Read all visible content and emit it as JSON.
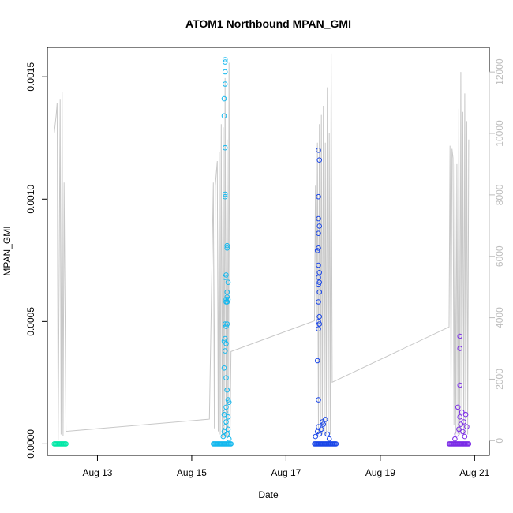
{
  "chart_data": {
    "type": "scatter",
    "title": "ATOM1 Northbound MPAN_GMI",
    "xlabel": "Date",
    "ylabel": "MPAN_GMI",
    "x_axis": {
      "type": "date",
      "range": [
        "2012-08-11T22:30",
        "2012-08-21T07:30"
      ],
      "ticks": [
        {
          "label": "Aug 13",
          "value": "2012-08-13"
        },
        {
          "label": "Aug 15",
          "value": "2012-08-15"
        },
        {
          "label": "Aug 17",
          "value": "2012-08-17"
        },
        {
          "label": "Aug 19",
          "value": "2012-08-19"
        },
        {
          "label": "Aug 21",
          "value": "2012-08-21"
        }
      ]
    },
    "y_axis": {
      "range": [
        -4.7e-05,
        0.00162
      ],
      "ticks": [
        {
          "label": "0.0000",
          "value": 0
        },
        {
          "label": "0.0005",
          "value": 0.0005
        },
        {
          "label": "0.0010",
          "value": 0.001
        },
        {
          "label": "0.0015",
          "value": 0.0015
        }
      ]
    },
    "y2_axis": {
      "color": "#bdbdbd",
      "range": [
        -480,
        12800
      ],
      "ticks": [
        {
          "label": "0",
          "value": 0
        },
        {
          "label": "2000",
          "value": 2000
        },
        {
          "label": "4000",
          "value": 4000
        },
        {
          "label": "6000",
          "value": 6000
        },
        {
          "label": "8000",
          "value": 8000
        },
        {
          "label": "10000",
          "value": 10000
        },
        {
          "label": "12000",
          "value": 12000
        }
      ]
    },
    "grid": false,
    "line_series": {
      "axis": "right",
      "color": "#c8c8c8",
      "points": [
        [
          "2012-08-12T02:00",
          10000
        ],
        [
          "2012-08-12T03:00",
          10600
        ],
        [
          "2012-08-12T03:30",
          11000
        ],
        [
          "2012-08-12T04:00",
          0
        ],
        [
          "2012-08-12T05:00",
          11100
        ],
        [
          "2012-08-12T05:30",
          200
        ],
        [
          "2012-08-12T06:00",
          11350
        ],
        [
          "2012-08-12T06:30",
          150
        ],
        [
          "2012-08-12T07:00",
          8400
        ],
        [
          "2012-08-12T08:00",
          300
        ],
        [
          "2012-08-15T09:00",
          700
        ],
        [
          "2012-08-15T11:00",
          8400
        ],
        [
          "2012-08-15T11:30",
          400
        ],
        [
          "2012-08-15T12:00",
          8300
        ],
        [
          "2012-08-15T13:00",
          9100
        ],
        [
          "2012-08-15T13:30",
          300
        ],
        [
          "2012-08-15T14:00",
          9400
        ],
        [
          "2012-08-15T14:30",
          200
        ],
        [
          "2012-08-15T15:00",
          10300
        ],
        [
          "2012-08-15T15:30",
          100
        ],
        [
          "2012-08-15T16:00",
          10200
        ],
        [
          "2012-08-15T16:30",
          100
        ],
        [
          "2012-08-15T17:00",
          11800
        ],
        [
          "2012-08-15T17:30",
          100
        ],
        [
          "2012-08-15T18:00",
          9800
        ],
        [
          "2012-08-15T18:30",
          100
        ],
        [
          "2012-08-15T19:00",
          12300
        ],
        [
          "2012-08-15T19:30",
          200
        ],
        [
          "2012-08-15T20:00",
          2900
        ],
        [
          "2012-08-17T14:30",
          3900
        ],
        [
          "2012-08-17T15:00",
          8300
        ],
        [
          "2012-08-17T15:30",
          3700
        ],
        [
          "2012-08-17T16:00",
          9700
        ],
        [
          "2012-08-17T16:30",
          200
        ],
        [
          "2012-08-17T17:00",
          10300
        ],
        [
          "2012-08-17T17:30",
          200
        ],
        [
          "2012-08-17T18:00",
          10600
        ],
        [
          "2012-08-17T18:30",
          200
        ],
        [
          "2012-08-17T19:00",
          10900
        ],
        [
          "2012-08-17T19:30",
          200
        ],
        [
          "2012-08-17T20:00",
          9700
        ],
        [
          "2012-08-17T20:30",
          200
        ],
        [
          "2012-08-17T21:00",
          11500
        ],
        [
          "2012-08-17T21:30",
          300
        ],
        [
          "2012-08-17T22:00",
          10000
        ],
        [
          "2012-08-17T22:30",
          200
        ],
        [
          "2012-08-17T23:00",
          12600
        ],
        [
          "2012-08-17T23:30",
          1900
        ],
        [
          "2012-08-20T11:00",
          3700
        ],
        [
          "2012-08-20T11:30",
          9600
        ],
        [
          "2012-08-20T12:00",
          1600
        ],
        [
          "2012-08-20T12:30",
          9500
        ],
        [
          "2012-08-20T13:00",
          9200
        ],
        [
          "2012-08-20T13:30",
          500
        ],
        [
          "2012-08-20T14:00",
          9000
        ],
        [
          "2012-08-20T14:30",
          200
        ],
        [
          "2012-08-20T15:00",
          9000
        ],
        [
          "2012-08-20T15:30",
          200
        ],
        [
          "2012-08-20T16:00",
          10800
        ],
        [
          "2012-08-20T16:30",
          200
        ],
        [
          "2012-08-20T17:00",
          12000
        ],
        [
          "2012-08-20T17:30",
          200
        ],
        [
          "2012-08-20T18:00",
          10700
        ],
        [
          "2012-08-20T18:30",
          200
        ],
        [
          "2012-08-20T19:00",
          11300
        ],
        [
          "2012-08-20T19:30",
          200
        ],
        [
          "2012-08-20T20:00",
          10400
        ],
        [
          "2012-08-20T20:30",
          200
        ],
        [
          "2012-08-20T21:00",
          9800
        ]
      ]
    },
    "scatter_groups": [
      {
        "color": "#00e8a6",
        "points": [
          [
            "2012-08-12T02:00",
            0.0
          ],
          [
            "2012-08-12T02:30",
            0.0
          ],
          [
            "2012-08-12T03:00",
            0.0
          ],
          [
            "2012-08-12T03:30",
            0.0
          ],
          [
            "2012-08-12T04:00",
            0.0
          ],
          [
            "2012-08-12T04:30",
            0.0
          ],
          [
            "2012-08-12T05:00",
            0.0
          ],
          [
            "2012-08-12T05:30",
            0.0
          ],
          [
            "2012-08-12T06:00",
            0.0
          ],
          [
            "2012-08-12T06:30",
            0.0
          ],
          [
            "2012-08-12T07:00",
            0.0
          ],
          [
            "2012-08-12T07:30",
            0.0
          ],
          [
            "2012-08-12T08:00",
            0.0
          ]
        ]
      },
      {
        "color": "#14b8ee",
        "points": [
          [
            "2012-08-15T11:00",
            0.0
          ],
          [
            "2012-08-15T11:30",
            0.0
          ],
          [
            "2012-08-15T12:00",
            0.0
          ],
          [
            "2012-08-15T12:30",
            0.0
          ],
          [
            "2012-08-15T13:00",
            0.0
          ],
          [
            "2012-08-15T13:30",
            0.0
          ],
          [
            "2012-08-15T14:00",
            0.0
          ],
          [
            "2012-08-15T14:30",
            0.0
          ],
          [
            "2012-08-15T15:00",
            0.0
          ],
          [
            "2012-08-15T15:30",
            0.0
          ],
          [
            "2012-08-15T16:00",
            0.0
          ],
          [
            "2012-08-15T16:30",
            0.0
          ],
          [
            "2012-08-15T17:00",
            0.0
          ],
          [
            "2012-08-15T17:30",
            0.0
          ],
          [
            "2012-08-15T18:00",
            0.0
          ],
          [
            "2012-08-15T18:30",
            0.0
          ],
          [
            "2012-08-15T19:00",
            0.0
          ],
          [
            "2012-08-15T19:30",
            0.0
          ],
          [
            "2012-08-15T20:00",
            0.0
          ],
          [
            "2012-08-15T16:00",
            3e-05
          ],
          [
            "2012-08-15T16:30",
            5e-05
          ],
          [
            "2012-08-15T17:00",
            7e-05
          ],
          [
            "2012-08-15T17:30",
            9e-05
          ],
          [
            "2012-08-15T18:00",
            4e-05
          ],
          [
            "2012-08-15T18:30",
            6e-05
          ],
          [
            "2012-08-15T19:00",
            2e-05
          ],
          [
            "2012-08-15T16:30",
            0.00012
          ],
          [
            "2012-08-15T17:30",
            0.00015
          ],
          [
            "2012-08-15T18:30",
            0.00011
          ],
          [
            "2012-08-15T17:00",
            0.00156
          ],
          [
            "2012-08-15T17:00",
            0.00157
          ],
          [
            "2012-08-15T17:00",
            0.00152
          ],
          [
            "2012-08-15T17:00",
            0.00147
          ],
          [
            "2012-08-15T16:30",
            0.00141
          ],
          [
            "2012-08-15T16:30",
            0.00134
          ],
          [
            "2012-08-15T17:00",
            0.00121
          ],
          [
            "2012-08-15T17:00",
            0.00102
          ],
          [
            "2012-08-15T17:00",
            0.00101
          ],
          [
            "2012-08-15T18:00",
            0.00081
          ],
          [
            "2012-08-15T18:00",
            0.0008
          ],
          [
            "2012-08-15T17:30",
            0.00069
          ],
          [
            "2012-08-15T17:00",
            0.00068
          ],
          [
            "2012-08-15T18:30",
            0.00066
          ],
          [
            "2012-08-15T18:00",
            0.00062
          ],
          [
            "2012-08-15T18:00",
            0.0006
          ],
          [
            "2012-08-15T17:30",
            0.00059
          ],
          [
            "2012-08-15T18:30",
            0.00059
          ],
          [
            "2012-08-15T18:00",
            0.00058
          ],
          [
            "2012-08-15T17:30",
            0.00058
          ],
          [
            "2012-08-15T17:00",
            0.00049
          ],
          [
            "2012-08-15T17:30",
            0.00048
          ],
          [
            "2012-08-15T18:00",
            0.00049
          ],
          [
            "2012-08-15T16:30",
            0.00042
          ],
          [
            "2012-08-15T17:00",
            0.00043
          ],
          [
            "2012-08-15T17:30",
            0.00041
          ],
          [
            "2012-08-15T17:00",
            0.00038
          ],
          [
            "2012-08-15T16:30",
            0.00031
          ],
          [
            "2012-08-15T17:30",
            0.00027
          ],
          [
            "2012-08-15T18:00",
            0.00022
          ],
          [
            "2012-08-15T18:30",
            0.00018
          ],
          [
            "2012-08-15T19:00",
            0.00017
          ],
          [
            "2012-08-15T17:00",
            0.00013
          ]
        ]
      },
      {
        "color": "#1a46e8",
        "points": [
          [
            "2012-08-17T14:30",
            0.0
          ],
          [
            "2012-08-17T15:00",
            0.0
          ],
          [
            "2012-08-17T15:30",
            0.0
          ],
          [
            "2012-08-17T16:00",
            0.0
          ],
          [
            "2012-08-17T16:30",
            0.0
          ],
          [
            "2012-08-17T17:00",
            0.0
          ],
          [
            "2012-08-17T17:30",
            0.0
          ],
          [
            "2012-08-17T18:00",
            0.0
          ],
          [
            "2012-08-17T18:30",
            0.0
          ],
          [
            "2012-08-17T19:00",
            0.0
          ],
          [
            "2012-08-17T19:30",
            0.0
          ],
          [
            "2012-08-17T20:00",
            0.0
          ],
          [
            "2012-08-17T20:30",
            0.0
          ],
          [
            "2012-08-17T21:00",
            0.0
          ],
          [
            "2012-08-17T21:30",
            0.0
          ],
          [
            "2012-08-17T22:00",
            0.0
          ],
          [
            "2012-08-17T22:30",
            0.0
          ],
          [
            "2012-08-17T23:00",
            0.0
          ],
          [
            "2012-08-17T23:30",
            0.0
          ],
          [
            "2012-08-18T00:00",
            0.0
          ],
          [
            "2012-08-18T00:30",
            0.0
          ],
          [
            "2012-08-18T01:00",
            0.0
          ],
          [
            "2012-08-18T01:30",
            0.0
          ],
          [
            "2012-08-17T15:00",
            3e-05
          ],
          [
            "2012-08-17T16:00",
            5e-05
          ],
          [
            "2012-08-17T17:00",
            4e-05
          ],
          [
            "2012-08-17T18:00",
            6e-05
          ],
          [
            "2012-08-17T19:00",
            8e-05
          ],
          [
            "2012-08-17T20:00",
            0.0001
          ],
          [
            "2012-08-17T21:00",
            4e-05
          ],
          [
            "2012-08-17T22:00",
            2e-05
          ],
          [
            "2012-08-17T16:30",
            7e-05
          ],
          [
            "2012-08-17T18:30",
            9e-05
          ],
          [
            "2012-08-17T16:30",
            0.0012
          ],
          [
            "2012-08-17T17:00",
            0.00116
          ],
          [
            "2012-08-17T16:30",
            0.00101
          ],
          [
            "2012-08-17T16:30",
            0.00092
          ],
          [
            "2012-08-17T17:00",
            0.00089
          ],
          [
            "2012-08-17T16:30",
            0.00086
          ],
          [
            "2012-08-17T16:00",
            0.00079
          ],
          [
            "2012-08-17T16:30",
            0.0008
          ],
          [
            "2012-08-17T16:30",
            0.00073
          ],
          [
            "2012-08-17T17:00",
            0.0007
          ],
          [
            "2012-08-17T16:30",
            0.00068
          ],
          [
            "2012-08-17T17:00",
            0.00066
          ],
          [
            "2012-08-17T16:30",
            0.00065
          ],
          [
            "2012-08-17T17:00",
            0.00062
          ],
          [
            "2012-08-17T16:30",
            0.00058
          ],
          [
            "2012-08-17T17:00",
            0.00052
          ],
          [
            "2012-08-17T16:30",
            0.0005
          ],
          [
            "2012-08-17T17:00",
            0.00049
          ],
          [
            "2012-08-17T16:30",
            0.00047
          ],
          [
            "2012-08-17T16:00",
            0.00034
          ],
          [
            "2012-08-17T16:30",
            0.00018
          ]
        ]
      },
      {
        "color": "#7b2be6",
        "points": [
          [
            "2012-08-20T11:00",
            0.0
          ],
          [
            "2012-08-20T11:30",
            0.0
          ],
          [
            "2012-08-20T12:00",
            0.0
          ],
          [
            "2012-08-20T12:30",
            0.0
          ],
          [
            "2012-08-20T13:00",
            0.0
          ],
          [
            "2012-08-20T13:30",
            0.0
          ],
          [
            "2012-08-20T14:00",
            0.0
          ],
          [
            "2012-08-20T14:30",
            0.0
          ],
          [
            "2012-08-20T15:00",
            0.0
          ],
          [
            "2012-08-20T15:30",
            0.0
          ],
          [
            "2012-08-20T16:00",
            0.0
          ],
          [
            "2012-08-20T16:30",
            0.0
          ],
          [
            "2012-08-20T17:00",
            0.0
          ],
          [
            "2012-08-20T17:30",
            0.0
          ],
          [
            "2012-08-20T18:00",
            0.0
          ],
          [
            "2012-08-20T18:30",
            0.0
          ],
          [
            "2012-08-20T19:00",
            0.0
          ],
          [
            "2012-08-20T19:30",
            0.0
          ],
          [
            "2012-08-20T20:00",
            0.0
          ],
          [
            "2012-08-20T20:30",
            0.0
          ],
          [
            "2012-08-20T21:00",
            0.0
          ],
          [
            "2012-08-20T14:00",
            2e-05
          ],
          [
            "2012-08-20T15:00",
            4e-05
          ],
          [
            "2012-08-20T16:00",
            6e-05
          ],
          [
            "2012-08-20T17:00",
            8e-05
          ],
          [
            "2012-08-20T18:00",
            5e-05
          ],
          [
            "2012-08-20T19:00",
            3e-05
          ],
          [
            "2012-08-20T20:00",
            7e-05
          ],
          [
            "2012-08-20T16:30",
            0.00011
          ],
          [
            "2012-08-20T17:30",
            0.00013
          ],
          [
            "2012-08-20T15:30",
            0.00015
          ],
          [
            "2012-08-20T18:30",
            9e-05
          ],
          [
            "2012-08-20T19:30",
            0.00012
          ],
          [
            "2012-08-20T16:30",
            0.00044
          ],
          [
            "2012-08-20T16:30",
            0.00039
          ],
          [
            "2012-08-20T16:30",
            0.00024
          ]
        ]
      }
    ]
  }
}
